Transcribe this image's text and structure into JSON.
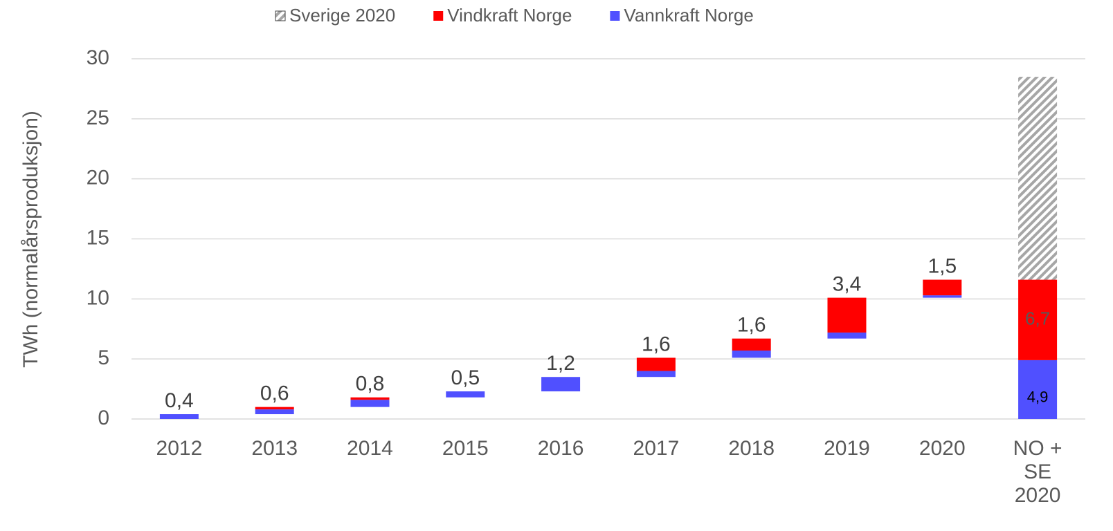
{
  "chart_data": {
    "type": "waterfall",
    "y_label": "TWh (normalårsproduksjon)",
    "categories": [
      "2012",
      "2013",
      "2014",
      "2015",
      "2016",
      "2017",
      "2018",
      "2019",
      "2020",
      "NO + SE 2020"
    ],
    "series": [
      {
        "name": "Vannkraft Norge",
        "color": "#5050ff",
        "values": [
          0.4,
          0.4,
          0.6,
          0.5,
          1.2,
          0.5,
          0.6,
          0.5,
          0.2,
          4.9
        ],
        "value_labels": [
          null,
          null,
          null,
          null,
          null,
          null,
          null,
          null,
          null,
          "4,9"
        ],
        "label_color": "#000000"
      },
      {
        "name": "Vindkraft Norge",
        "color": "#ff0000",
        "values": [
          0,
          0.2,
          0.2,
          0,
          0,
          1.1,
          1.0,
          2.9,
          1.3,
          6.7
        ],
        "value_labels": [
          null,
          null,
          null,
          null,
          null,
          null,
          null,
          null,
          null,
          "6,7"
        ],
        "label_color": "#595959"
      },
      {
        "name": "Sverige 2020",
        "color": "#a6a6a6",
        "pattern": "hatch",
        "values": [
          null,
          null,
          null,
          null,
          null,
          null,
          null,
          null,
          null,
          16.9
        ]
      }
    ],
    "totals": [
      0.4,
      0.6,
      0.8,
      0.5,
      1.2,
      1.6,
      1.6,
      3.4,
      1.5,
      null
    ],
    "value_labels": [
      "0,4",
      "0,6",
      "0,8",
      "0,5",
      "1,2",
      "1,6",
      "1,6",
      "3,4",
      "1,5",
      null
    ],
    "ylim": [
      0,
      30
    ],
    "yticks": [
      0,
      5,
      10,
      15,
      20,
      25,
      30
    ],
    "grid": true
  }
}
